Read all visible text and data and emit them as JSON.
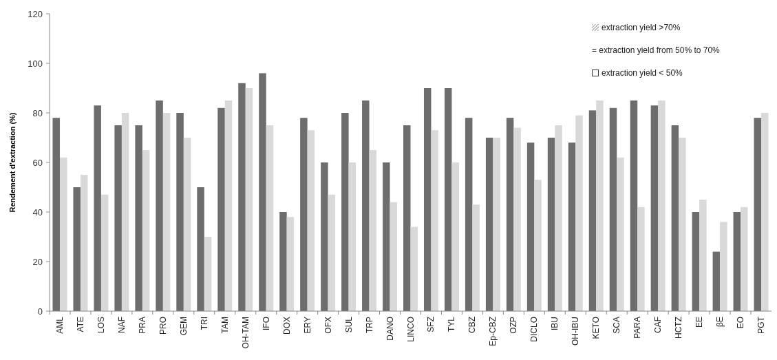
{
  "chart_data": {
    "type": "bar",
    "ylabel": "Rendement d'extraction (%)",
    "categories": [
      "AML",
      "ATE",
      "LOS",
      "NAF",
      "PRA",
      "PRO",
      "GEM",
      "TRI",
      "TAM",
      "OH-TAM",
      "IFO",
      "DOX",
      "ERY",
      "OFX",
      "SUL",
      "TRP",
      "DANO",
      "LINCO",
      "SFZ",
      "TYL",
      "CBZ",
      "Ep-CBZ",
      "OZP",
      "DICLO",
      "IBU",
      "OH-IBU",
      "KETO",
      "SCA",
      "PARA",
      "CAF",
      "HCTZ",
      "EE",
      "βE",
      "EO",
      "PGT"
    ],
    "series": [
      {
        "color": "#6d6d6d",
        "values": [
          78,
          50,
          83,
          75,
          75,
          85,
          80,
          50,
          82,
          92,
          96,
          40,
          78,
          60,
          80,
          85,
          60,
          75,
          90,
          90,
          78,
          70,
          78,
          68,
          70,
          68,
          81,
          82,
          85,
          83,
          75,
          40,
          24,
          40,
          78
        ]
      },
      {
        "color": "#d9d9d9",
        "values": [
          62,
          55,
          47,
          80,
          65,
          80,
          70,
          30,
          85,
          90,
          75,
          38,
          73,
          47,
          60,
          65,
          44,
          34,
          73,
          60,
          43,
          70,
          74,
          53,
          75,
          79,
          85,
          62,
          42,
          85,
          70,
          45,
          36,
          42,
          80
        ]
      }
    ],
    "ylim": [
      0,
      120
    ],
    "yticks": [
      0,
      20,
      40,
      60,
      80,
      100,
      120
    ],
    "grid": false,
    "annotations": [
      "extraction yield >70%",
      "= extraction yield from 50% to 70%",
      "extraction yield < 50%"
    ]
  }
}
